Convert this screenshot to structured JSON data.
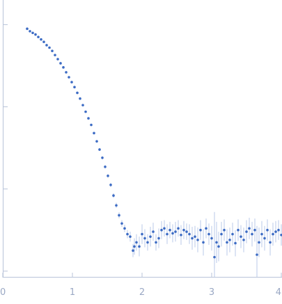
{
  "chart_data": {
    "type": "scatter",
    "title": "",
    "xlabel": "",
    "ylabel": "",
    "x_ticks": [
      "0",
      "1",
      "2",
      "3",
      "4"
    ],
    "xlim": [
      0,
      4
    ],
    "y_log": true,
    "ylim_log10": [
      -3.7,
      0.0
    ],
    "y_tick_log10": [
      -0.3,
      -1.3,
      -2.3,
      -3.3
    ],
    "grid": false,
    "legend": "none",
    "colors": {
      "point": "#3c6bc4",
      "error_bar": "#a9bde3",
      "axis": "#b8c3d9",
      "tick_label": "#9aa8c4"
    },
    "series": [
      {
        "x": [
          0.35,
          0.39,
          0.43,
          0.47,
          0.51,
          0.55,
          0.59,
          0.63,
          0.67,
          0.71,
          0.75,
          0.79,
          0.83,
          0.87,
          0.91,
          0.95,
          0.99,
          1.03,
          1.07,
          1.11,
          1.15,
          1.19,
          1.23,
          1.27,
          1.31,
          1.35,
          1.39,
          1.43,
          1.47,
          1.51,
          1.55,
          1.59,
          1.63,
          1.67,
          1.71,
          1.75,
          1.79,
          1.83,
          1.87,
          1.89,
          1.92,
          1.96,
          2.0,
          2.04,
          2.08,
          2.12,
          2.16,
          2.2,
          2.24,
          2.28,
          2.32,
          2.36,
          2.4,
          2.44,
          2.48,
          2.52,
          2.56,
          2.6,
          2.64,
          2.68,
          2.72,
          2.76,
          2.8,
          2.84,
          2.88,
          2.92,
          2.96,
          3.0,
          3.04,
          3.07,
          3.1,
          3.14,
          3.18,
          3.22,
          3.26,
          3.3,
          3.34,
          3.38,
          3.42,
          3.46,
          3.5,
          3.54,
          3.58,
          3.62,
          3.65,
          3.68,
          3.72,
          3.76,
          3.8,
          3.84,
          3.88,
          3.92,
          3.96,
          4.0
        ],
        "y_log10": [
          -0.35,
          -0.38,
          -0.4,
          -0.42,
          -0.45,
          -0.48,
          -0.51,
          -0.55,
          -0.58,
          -0.62,
          -0.67,
          -0.72,
          -0.77,
          -0.82,
          -0.88,
          -0.94,
          -1.0,
          -1.06,
          -1.13,
          -1.2,
          -1.28,
          -1.36,
          -1.44,
          -1.52,
          -1.62,
          -1.72,
          -1.82,
          -1.92,
          -2.03,
          -2.14,
          -2.25,
          -2.38,
          -2.5,
          -2.62,
          -2.72,
          -2.78,
          -2.85,
          -2.88,
          -3.05,
          -3.0,
          -2.95,
          -3.0,
          -2.85,
          -2.9,
          -2.95,
          -2.88,
          -2.82,
          -2.95,
          -2.9,
          -2.8,
          -2.78,
          -2.85,
          -2.8,
          -2.84,
          -2.82,
          -2.78,
          -2.86,
          -2.8,
          -2.82,
          -2.85,
          -2.9,
          -2.88,
          -2.92,
          -2.8,
          -2.95,
          -2.78,
          -2.85,
          -2.9,
          -3.13,
          -2.95,
          -3.0,
          -2.85,
          -2.8,
          -2.95,
          -2.92,
          -2.85,
          -2.96,
          -2.8,
          -2.88,
          -2.92,
          -2.82,
          -2.78,
          -2.85,
          -2.8,
          -3.1,
          -2.95,
          -2.85,
          -2.9,
          -2.8,
          -2.95,
          -2.85,
          -2.82,
          -2.8,
          -2.86
        ],
        "err_log10": [
          0.005,
          0.005,
          0.005,
          0.005,
          0.005,
          0.005,
          0.005,
          0.005,
          0.005,
          0.005,
          0.006,
          0.006,
          0.006,
          0.006,
          0.007,
          0.007,
          0.008,
          0.008,
          0.009,
          0.01,
          0.01,
          0.011,
          0.012,
          0.013,
          0.014,
          0.015,
          0.016,
          0.018,
          0.02,
          0.022,
          0.025,
          0.028,
          0.032,
          0.036,
          0.04,
          0.045,
          0.05,
          0.06,
          0.08,
          0.1,
          0.1,
          0.12,
          0.12,
          0.11,
          0.1,
          0.12,
          0.11,
          0.1,
          0.12,
          0.11,
          0.1,
          0.12,
          0.1,
          0.11,
          0.12,
          0.1,
          0.12,
          0.11,
          0.1,
          0.12,
          0.14,
          0.13,
          0.15,
          0.12,
          0.16,
          0.12,
          0.13,
          0.15,
          0.55,
          0.25,
          0.18,
          0.15,
          0.13,
          0.16,
          0.15,
          0.14,
          0.16,
          0.13,
          0.14,
          0.15,
          0.14,
          0.13,
          0.15,
          0.14,
          0.35,
          0.18,
          0.16,
          0.15,
          0.13,
          0.16,
          0.14,
          0.13,
          0.12,
          0.13
        ]
      }
    ]
  }
}
